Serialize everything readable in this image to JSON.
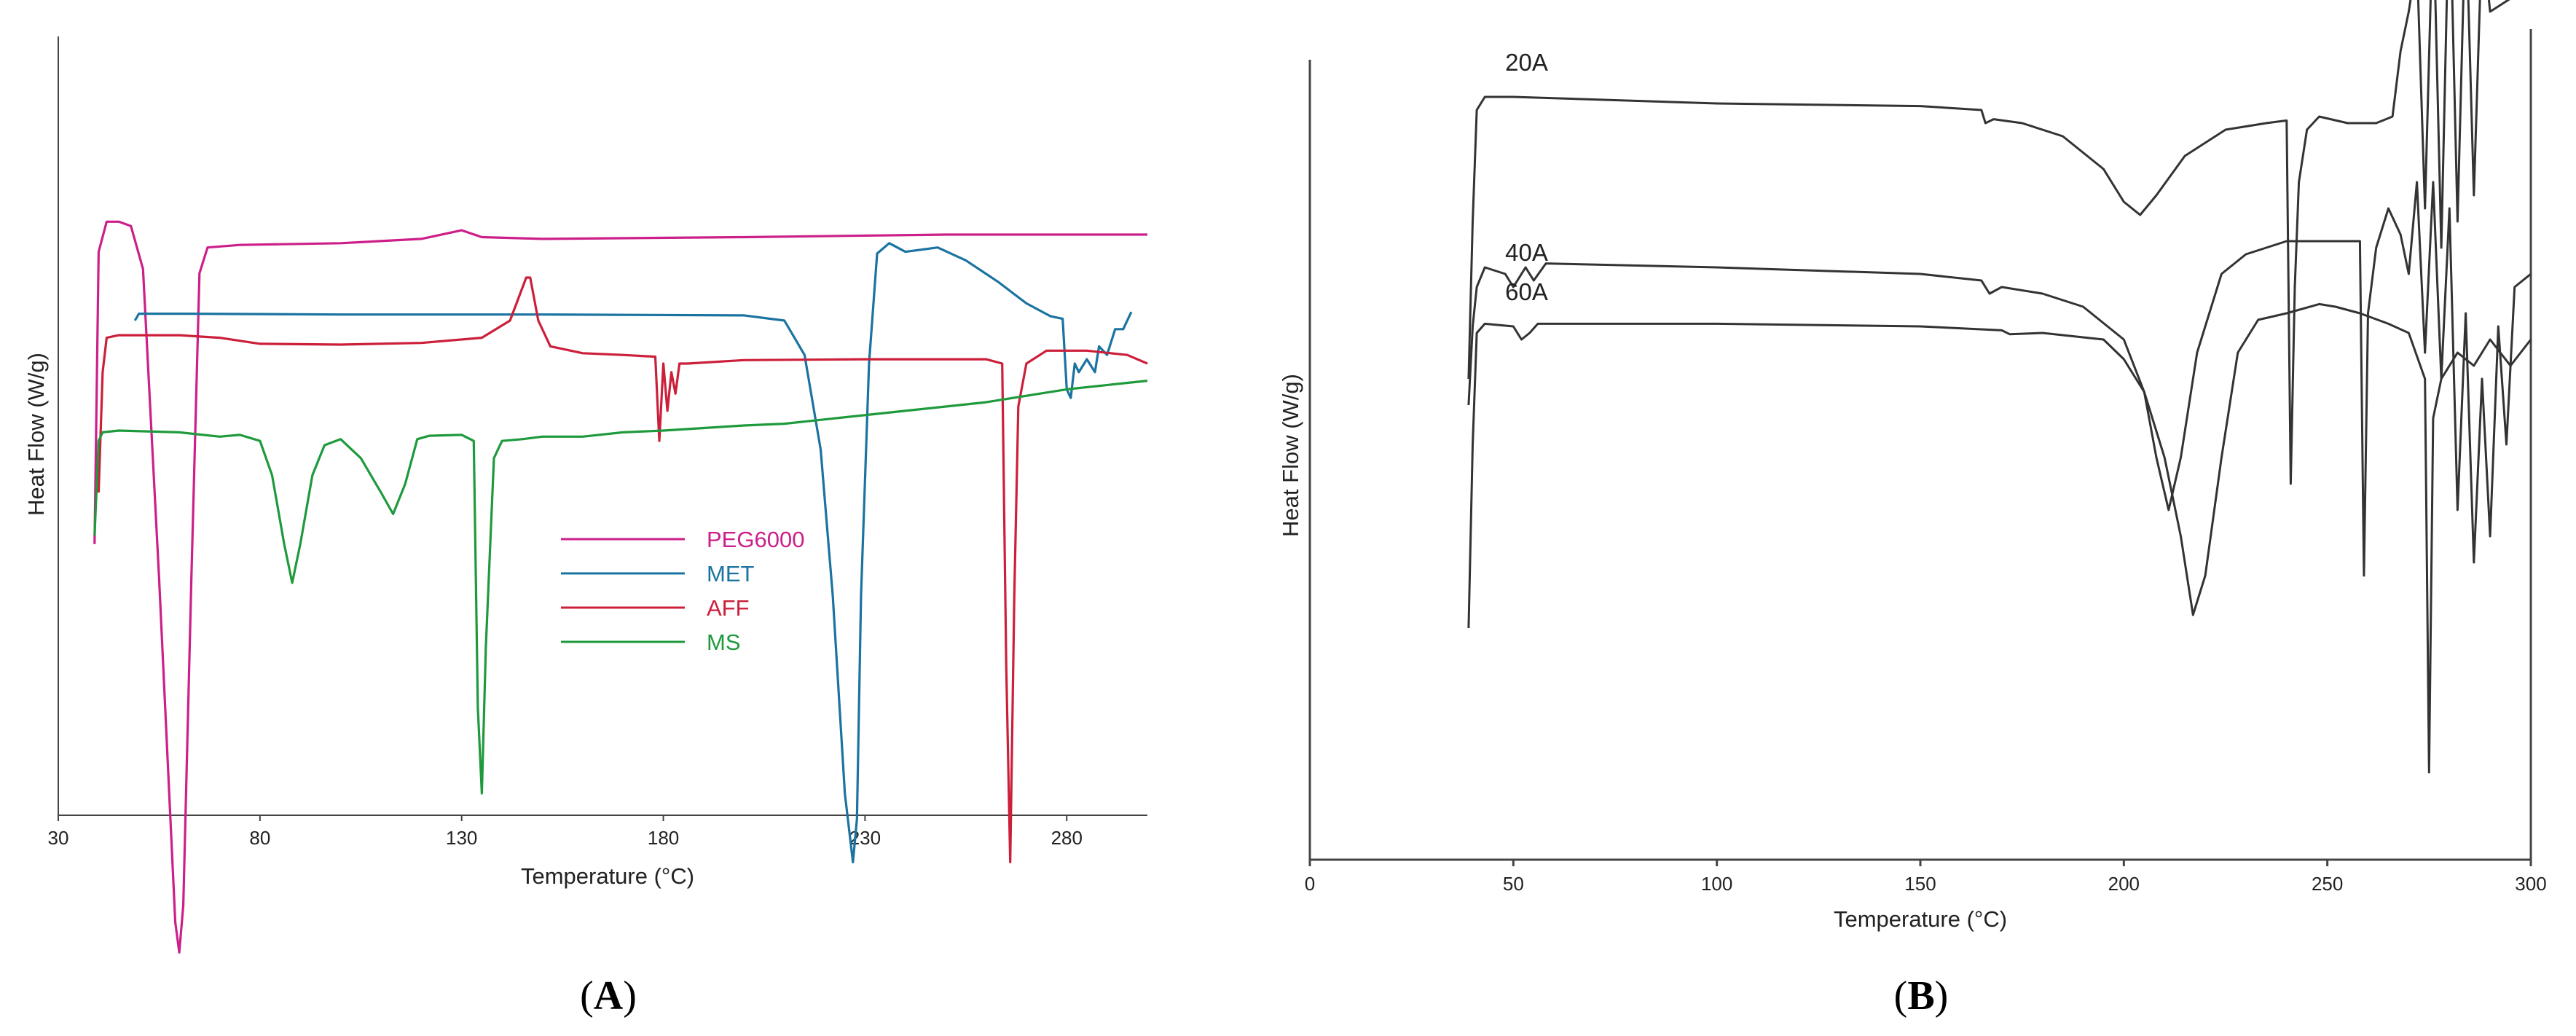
{
  "chart_data": [
    {
      "type": "line",
      "panel_label": "A",
      "xlabel": "Temperature (°C)",
      "ylabel": "Heat Flow (W/g)",
      "xlim": [
        30,
        300
      ],
      "xticks": [
        30,
        80,
        130,
        180,
        230,
        280
      ],
      "grid": false,
      "legend_position": "lower-center",
      "series": [
        {
          "name": "PEG6000",
          "color": "#cc1f8a",
          "points": [
            [
              39,
              -2.6
            ],
            [
              40,
              0.8
            ],
            [
              42,
              1.15
            ],
            [
              45,
              1.15
            ],
            [
              48,
              1.1
            ],
            [
              51,
              0.6
            ],
            [
              55,
              -3.0
            ],
            [
              59,
              -7.0
            ],
            [
              60,
              -7.35
            ],
            [
              61,
              -6.8
            ],
            [
              63,
              -3.0
            ],
            [
              65,
              0.55
            ],
            [
              67,
              0.85
            ],
            [
              75,
              0.88
            ],
            [
              100,
              0.9
            ],
            [
              120,
              0.95
            ],
            [
              130,
              1.05
            ],
            [
              135,
              0.97
            ],
            [
              150,
              0.95
            ],
            [
              200,
              0.97
            ],
            [
              250,
              1.0
            ],
            [
              300,
              1.0
            ]
          ]
        },
        {
          "name": "MET",
          "color": "#1a73a0",
          "points": [
            [
              49,
              0.0
            ],
            [
              50,
              0.08
            ],
            [
              60,
              0.08
            ],
            [
              100,
              0.07
            ],
            [
              150,
              0.07
            ],
            [
              200,
              0.06
            ],
            [
              210,
              0.0
            ],
            [
              215,
              -0.4
            ],
            [
              219,
              -1.5
            ],
            [
              222,
              -3.2
            ],
            [
              225,
              -5.5
            ],
            [
              227,
              -6.3
            ],
            [
              228,
              -5.8
            ],
            [
              229,
              -3.2
            ],
            [
              231,
              -0.5
            ],
            [
              233,
              0.78
            ],
            [
              236,
              0.9
            ],
            [
              240,
              0.8
            ],
            [
              248,
              0.85
            ],
            [
              255,
              0.7
            ],
            [
              263,
              0.45
            ],
            [
              270,
              0.2
            ],
            [
              276,
              0.05
            ],
            [
              279,
              0.02
            ],
            [
              280,
              -0.8
            ],
            [
              281,
              -0.9
            ],
            [
              282,
              -0.5
            ],
            [
              283,
              -0.6
            ],
            [
              285,
              -0.45
            ],
            [
              287,
              -0.6
            ],
            [
              288,
              -0.3
            ],
            [
              290,
              -0.4
            ],
            [
              292,
              -0.1
            ],
            [
              294,
              -0.1
            ],
            [
              296,
              0.1
            ]
          ]
        },
        {
          "name": "AFF",
          "color": "#cc1f3a",
          "points": [
            [
              40,
              -2.0
            ],
            [
              41,
              -0.6
            ],
            [
              42,
              -0.2
            ],
            [
              45,
              -0.17
            ],
            [
              60,
              -0.17
            ],
            [
              70,
              -0.2
            ],
            [
              80,
              -0.27
            ],
            [
              100,
              -0.28
            ],
            [
              120,
              -0.26
            ],
            [
              135,
              -0.2
            ],
            [
              142,
              0.0
            ],
            [
              146,
              0.5
            ],
            [
              147,
              0.5
            ],
            [
              149,
              0.0
            ],
            [
              152,
              -0.3
            ],
            [
              160,
              -0.38
            ],
            [
              170,
              -0.4
            ],
            [
              178,
              -0.42
            ],
            [
              179,
              -1.4
            ],
            [
              180,
              -0.5
            ],
            [
              181,
              -1.05
            ],
            [
              182,
              -0.6
            ],
            [
              183,
              -0.85
            ],
            [
              184,
              -0.5
            ],
            [
              186,
              -0.5
            ],
            [
              200,
              -0.46
            ],
            [
              230,
              -0.45
            ],
            [
              260,
              -0.45
            ],
            [
              264,
              -0.5
            ],
            [
              265,
              -4.0
            ],
            [
              266,
              -6.3
            ],
            [
              267,
              -3.2
            ],
            [
              268,
              -1.0
            ],
            [
              270,
              -0.5
            ],
            [
              275,
              -0.35
            ],
            [
              285,
              -0.35
            ],
            [
              295,
              -0.4
            ],
            [
              300,
              -0.5
            ]
          ]
        },
        {
          "name": "MS",
          "color": "#1e9a3c",
          "points": [
            [
              39,
              -2.5
            ],
            [
              40,
              -1.4
            ],
            [
              41,
              -1.3
            ],
            [
              45,
              -1.28
            ],
            [
              60,
              -1.3
            ],
            [
              70,
              -1.35
            ],
            [
              75,
              -1.33
            ],
            [
              80,
              -1.4
            ],
            [
              83,
              -1.8
            ],
            [
              86,
              -2.6
            ],
            [
              88,
              -3.05
            ],
            [
              90,
              -2.6
            ],
            [
              93,
              -1.8
            ],
            [
              96,
              -1.45
            ],
            [
              100,
              -1.38
            ],
            [
              105,
              -1.6
            ],
            [
              110,
              -2.0
            ],
            [
              113,
              -2.25
            ],
            [
              116,
              -1.9
            ],
            [
              119,
              -1.38
            ],
            [
              122,
              -1.34
            ],
            [
              130,
              -1.33
            ],
            [
              133,
              -1.4
            ],
            [
              134,
              -4.5
            ],
            [
              135,
              -5.5
            ],
            [
              136,
              -3.8
            ],
            [
              138,
              -1.6
            ],
            [
              140,
              -1.4
            ],
            [
              145,
              -1.38
            ],
            [
              150,
              -1.35
            ],
            [
              160,
              -1.35
            ],
            [
              170,
              -1.3
            ],
            [
              180,
              -1.28
            ],
            [
              190,
              -1.25
            ],
            [
              200,
              -1.22
            ],
            [
              210,
              -1.2
            ],
            [
              220,
              -1.15
            ],
            [
              240,
              -1.05
            ],
            [
              260,
              -0.95
            ],
            [
              280,
              -0.8
            ],
            [
              300,
              -0.7
            ]
          ]
        }
      ]
    },
    {
      "type": "line",
      "panel_label": "B",
      "xlabel": "Temperature (°C)",
      "ylabel": "Heat Flow (W/g)",
      "xlim": [
        0,
        300
      ],
      "xticks": [
        0,
        50,
        100,
        150,
        200,
        250,
        300
      ],
      "grid": false,
      "line_color": "#333333",
      "series": [
        {
          "name": "20A",
          "points": [
            [
              39,
              -1.0
            ],
            [
              40,
              0.2
            ],
            [
              41,
              1.05
            ],
            [
              43,
              1.15
            ],
            [
              50,
              1.15
            ],
            [
              100,
              1.1
            ],
            [
              150,
              1.08
            ],
            [
              165,
              1.05
            ],
            [
              166,
              0.95
            ],
            [
              168,
              0.98
            ],
            [
              175,
              0.95
            ],
            [
              185,
              0.85
            ],
            [
              195,
              0.6
            ],
            [
              200,
              0.35
            ],
            [
              204,
              0.25
            ],
            [
              208,
              0.4
            ],
            [
              215,
              0.7
            ],
            [
              225,
              0.9
            ],
            [
              235,
              0.95
            ],
            [
              240,
              0.97
            ],
            [
              241,
              -1.8
            ],
            [
              242,
              -0.3
            ],
            [
              243,
              0.5
            ],
            [
              245,
              0.9
            ],
            [
              248,
              1.0
            ],
            [
              255,
              0.95
            ],
            [
              262,
              0.95
            ],
            [
              266,
              1.0
            ],
            [
              268,
              1.5
            ],
            [
              270,
              1.8
            ],
            [
              272,
              2.2
            ],
            [
              274,
              0.3
            ],
            [
              276,
              2.6
            ],
            [
              278,
              0.0
            ],
            [
              280,
              2.8
            ],
            [
              282,
              0.2
            ],
            [
              284,
              2.6
            ],
            [
              286,
              0.4
            ],
            [
              288,
              2.4
            ],
            [
              290,
              1.8
            ],
            [
              295,
              1.9
            ],
            [
              300,
              2.1
            ]
          ]
        },
        {
          "name": "40A",
          "points": [
            [
              39,
              -1.2
            ],
            [
              40,
              -0.6
            ],
            [
              41,
              -0.3
            ],
            [
              43,
              -0.15
            ],
            [
              48,
              -0.2
            ],
            [
              50,
              -0.3
            ],
            [
              53,
              -0.15
            ],
            [
              55,
              -0.25
            ],
            [
              58,
              -0.12
            ],
            [
              100,
              -0.15
            ],
            [
              150,
              -0.2
            ],
            [
              165,
              -0.25
            ],
            [
              167,
              -0.35
            ],
            [
              170,
              -0.3
            ],
            [
              180,
              -0.35
            ],
            [
              190,
              -0.45
            ],
            [
              200,
              -0.7
            ],
            [
              205,
              -1.1
            ],
            [
              208,
              -1.6
            ],
            [
              211,
              -2.0
            ],
            [
              214,
              -1.6
            ],
            [
              218,
              -0.8
            ],
            [
              224,
              -0.2
            ],
            [
              230,
              -0.05
            ],
            [
              240,
              0.05
            ],
            [
              255,
              0.05
            ],
            [
              258,
              0.05
            ],
            [
              259,
              -2.5
            ],
            [
              260,
              -0.5
            ],
            [
              262,
              0.0
            ],
            [
              265,
              0.3
            ],
            [
              268,
              0.1
            ],
            [
              270,
              -0.2
            ],
            [
              272,
              0.5
            ],
            [
              274,
              -0.8
            ],
            [
              276,
              0.5
            ],
            [
              278,
              -1.0
            ],
            [
              280,
              0.3
            ],
            [
              282,
              -2.0
            ],
            [
              284,
              -0.5
            ],
            [
              286,
              -2.4
            ],
            [
              288,
              -1.0
            ],
            [
              290,
              -2.2
            ],
            [
              292,
              -0.6
            ],
            [
              294,
              -1.5
            ],
            [
              296,
              -0.3
            ],
            [
              300,
              -0.2
            ]
          ]
        },
        {
          "name": "60A",
          "points": [
            [
              39,
              -2.9
            ],
            [
              40,
              -1.5
            ],
            [
              41,
              -0.65
            ],
            [
              43,
              -0.58
            ],
            [
              50,
              -0.6
            ],
            [
              52,
              -0.7
            ],
            [
              54,
              -0.65
            ],
            [
              56,
              -0.58
            ],
            [
              100,
              -0.58
            ],
            [
              150,
              -0.6
            ],
            [
              170,
              -0.63
            ],
            [
              172,
              -0.66
            ],
            [
              180,
              -0.65
            ],
            [
              195,
              -0.7
            ],
            [
              200,
              -0.85
            ],
            [
              205,
              -1.1
            ],
            [
              210,
              -1.6
            ],
            [
              214,
              -2.2
            ],
            [
              217,
              -2.8
            ],
            [
              220,
              -2.5
            ],
            [
              224,
              -1.6
            ],
            [
              228,
              -0.8
            ],
            [
              233,
              -0.55
            ],
            [
              240,
              -0.5
            ],
            [
              248,
              -0.43
            ],
            [
              252,
              -0.45
            ],
            [
              258,
              -0.5
            ],
            [
              265,
              -0.58
            ],
            [
              270,
              -0.65
            ],
            [
              274,
              -1.0
            ],
            [
              275,
              -4.0
            ],
            [
              276,
              -1.3
            ],
            [
              278,
              -1.0
            ],
            [
              282,
              -0.8
            ],
            [
              286,
              -0.9
            ],
            [
              290,
              -0.7
            ],
            [
              295,
              -0.9
            ],
            [
              300,
              -0.7
            ]
          ]
        }
      ]
    }
  ]
}
